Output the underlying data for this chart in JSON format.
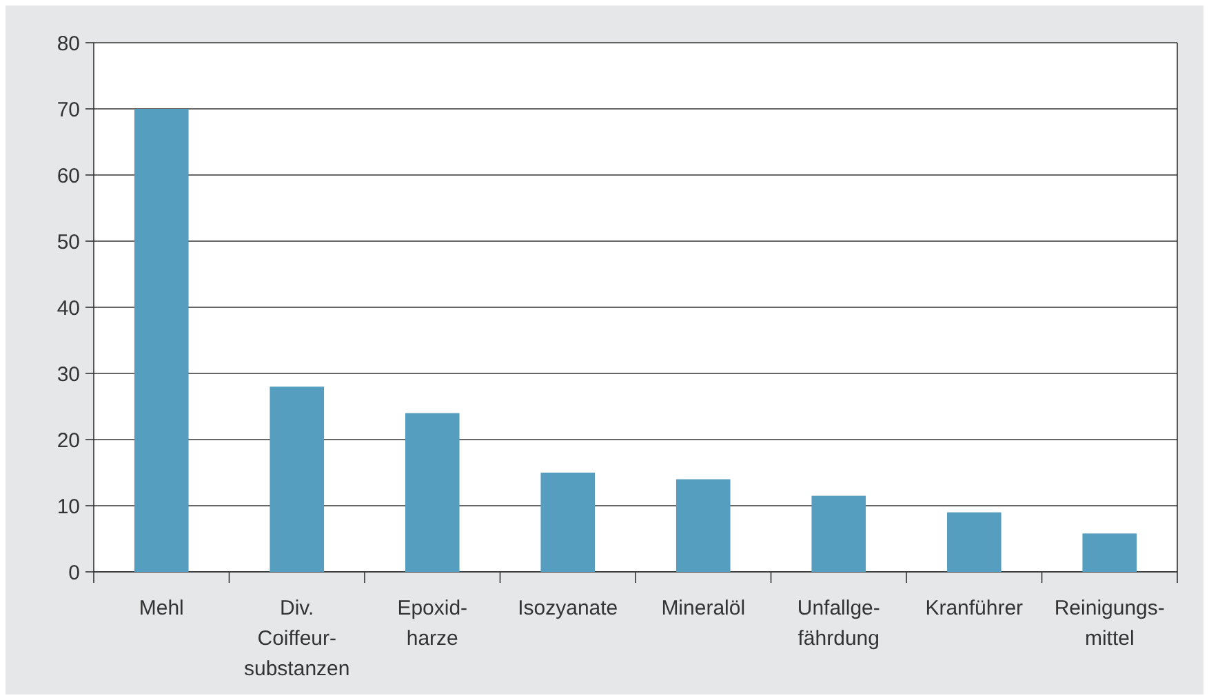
{
  "chart_data": {
    "type": "bar",
    "categories": [
      "Mehl",
      "Div.\nCoiffeur-\nsubstanzen",
      "Epoxid-\nharze",
      "Isozyanate",
      "Mineralöl",
      "Unfallge-\nfährdung",
      "Kranführer",
      "Reinigungs-\nmittel"
    ],
    "values": [
      70,
      28,
      24,
      15,
      14,
      11.5,
      9,
      5.8
    ],
    "color": "#559ec0",
    "ylim": [
      0,
      80
    ],
    "yticks": [
      0,
      10,
      20,
      30,
      40,
      50,
      60,
      70,
      80
    ],
    "grid": "y"
  }
}
